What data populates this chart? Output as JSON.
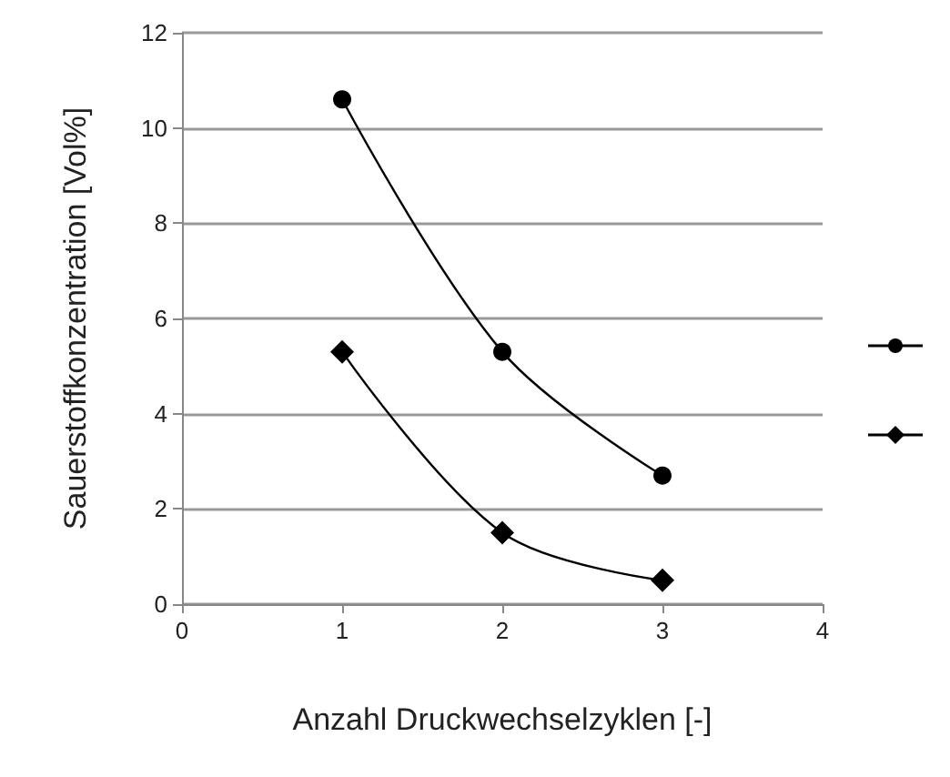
{
  "chart_data": {
    "type": "line",
    "xlabel": "Anzahl Druckwechselzyklen [-]",
    "ylabel": "Sauerstoffkonzentration [Vol%]",
    "x": [
      1,
      2,
      3
    ],
    "series": [
      {
        "color": "#000000",
        "marker": "circle",
        "values": [
          10.6,
          5.3,
          2.7
        ]
      },
      {
        "color": "#000000",
        "marker": "diamond",
        "values": [
          5.3,
          1.5,
          0.5
        ]
      }
    ],
    "xlim": [
      0,
      4
    ],
    "xticks": [
      0,
      1,
      2,
      3,
      4
    ],
    "ylim": [
      0,
      12
    ],
    "yticks": [
      0,
      2,
      4,
      6,
      8,
      10,
      12
    ],
    "grid": "y"
  }
}
